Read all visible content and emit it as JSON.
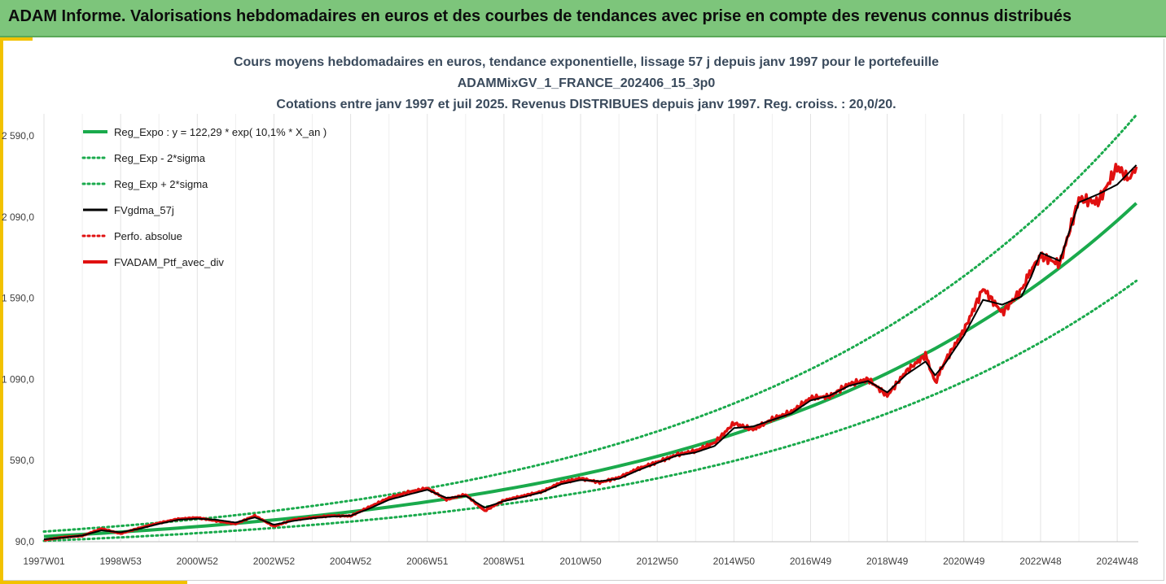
{
  "banner": {
    "title": "ADAM Informe. Valorisations hebdomadaires en euros et des courbes de tendances avec prise en compte des revenus connus distribués"
  },
  "colors": {
    "banner": "#7dc57b",
    "accent": "#f2c200",
    "trend": "#1aaa4c",
    "smooth": "#000000",
    "portfolio": "#e01010"
  },
  "chart_data": {
    "type": "line",
    "title_lines": [
      "Cours moyens hebdomadaires en euros, tendance exponentielle, lissage 57 j depuis janv 1997 pour le portefeuille",
      "ADAMMixGV_1_FRANCE_202406_15_3p0",
      "Cotations entre janv 1997 et juil 2025. Revenus DISTRIBUES depuis janv 1997. Reg. croiss. : 20,0/20."
    ],
    "x_tick_labels": [
      "1997W01",
      "1998W53",
      "2000W52",
      "2002W52",
      "2004W52",
      "2006W51",
      "2008W51",
      "2010W50",
      "2012W50",
      "2014W50",
      "2016W49",
      "2018W49",
      "2020W49",
      "2022W48",
      "2024W48"
    ],
    "x_tick_years": [
      1997.0,
      1999.0,
      2001.0,
      2003.0,
      2005.0,
      2007.0,
      2009.0,
      2011.0,
      2013.0,
      2015.0,
      2017.0,
      2019.0,
      2021.0,
      2023.0,
      2025.0
    ],
    "x_range": [
      1997.0,
      2025.55
    ],
    "y_tick_labels": [
      "90,0",
      "590,0",
      "1 090,0",
      "1 590,0",
      "2 090,0",
      "2 590,0"
    ],
    "y_tick_values": [
      90,
      590,
      1090,
      1590,
      2090,
      2590
    ],
    "ylim": [
      90,
      2590
    ],
    "grid": "vertical",
    "legend_position": "top-left",
    "legend": [
      {
        "label": "Reg_Expo : y = 122,29 * exp( 10,1% *  X_an )",
        "color": "#1aaa4c",
        "style": "solid"
      },
      {
        "label": "Reg_Exp - 2*sigma",
        "color": "#1aaa4c",
        "style": "dotted"
      },
      {
        "label": "Reg_Exp + 2*sigma",
        "color": "#1aaa4c",
        "style": "dotted"
      },
      {
        "label": "FVgdma_57j",
        "color": "#000000",
        "style": "solid"
      },
      {
        "label": "Perfo. absolue",
        "color": "#e01010",
        "style": "dotted"
      },
      {
        "label": "FVADAM_Ptf_avec_div",
        "color": "#e01010",
        "style": "solid"
      }
    ],
    "regression": {
      "a": 122.29,
      "b": 0.101
    },
    "series": [
      {
        "name": "Reg_Expo : y = 122,29 * exp( 10,1% *  X_an )",
        "x": [
          1997.0,
          1999.0,
          2001.0,
          2003.0,
          2005.0,
          2007.0,
          2009.0,
          2011.0,
          2013.0,
          2015.0,
          2017.0,
          2019.0,
          2021.0,
          2023.0,
          2025.5
        ],
        "values": [
          122,
          150,
          183,
          224,
          274,
          335,
          410,
          502,
          614,
          751,
          919,
          1124,
          1375,
          1680,
          2150
        ]
      },
      {
        "name": "Reg_Exp - 2*sigma",
        "x": [
          1997.0,
          1999.0,
          2001.0,
          2003.0,
          2005.0,
          2007.0,
          2009.0,
          2011.0,
          2013.0,
          2015.0,
          2017.0,
          2019.0,
          2021.0,
          2023.0,
          2025.5
        ],
        "values": [
          112,
          131,
          155,
          185,
          222,
          266,
          320,
          386,
          465,
          562,
          678,
          820,
          990,
          1200,
          1768
        ]
      },
      {
        "name": "Reg_Exp + 2*sigma",
        "x": [
          1997.0,
          1999.0,
          2001.0,
          2003.0,
          2005.0,
          2007.0,
          2009.0,
          2011.0,
          2013.0,
          2015.0,
          2017.0,
          2019.0,
          2021.0,
          2023.0,
          2025.5
        ],
        "values": [
          155,
          186,
          224,
          270,
          326,
          394,
          476,
          576,
          697,
          844,
          1022,
          1238,
          1500,
          1818,
          2690
        ]
      },
      {
        "name": "FVgdma_57j",
        "x": [
          1997.0,
          1997.5,
          1998.0,
          1998.5,
          1999.0,
          1999.5,
          2000.0,
          2000.5,
          2001.0,
          2001.5,
          2002.0,
          2002.5,
          2003.0,
          2003.5,
          2004.0,
          2004.5,
          2005.0,
          2005.5,
          2006.0,
          2006.5,
          2007.0,
          2007.5,
          2008.0,
          2008.5,
          2009.0,
          2009.5,
          2010.0,
          2010.5,
          2011.0,
          2011.5,
          2012.0,
          2012.5,
          2013.0,
          2013.5,
          2014.0,
          2014.5,
          2015.0,
          2015.5,
          2016.0,
          2016.5,
          2017.0,
          2017.5,
          2018.0,
          2018.5,
          2019.0,
          2019.5,
          2020.0,
          2020.25,
          2020.5,
          2021.0,
          2021.5,
          2022.0,
          2022.5,
          2022.75,
          2023.0,
          2023.5,
          2024.0,
          2024.5,
          2025.0,
          2025.5
        ],
        "values": [
          105,
          115,
          128,
          160,
          148,
          170,
          200,
          225,
          232,
          225,
          208,
          240,
          195,
          218,
          235,
          245,
          250,
          295,
          348,
          380,
          410,
          360,
          372,
          300,
          340,
          365,
          395,
          445,
          470,
          462,
          478,
          530,
          575,
          620,
          640,
          680,
          790,
          800,
          840,
          880,
          960,
          990,
          1050,
          1080,
          1010,
          1120,
          1200,
          1115,
          1185,
          1360,
          1580,
          1550,
          1600,
          1720,
          1870,
          1820,
          2180,
          2230,
          2290,
          2410
        ]
      },
      {
        "name": "FVADAM_Ptf_avec_div",
        "x": [
          1997.0,
          1997.5,
          1998.0,
          1998.5,
          1999.0,
          1999.5,
          2000.0,
          2000.5,
          2001.0,
          2001.5,
          2002.0,
          2002.5,
          2003.0,
          2003.5,
          2004.0,
          2004.5,
          2005.0,
          2005.5,
          2006.0,
          2006.5,
          2007.0,
          2007.5,
          2008.0,
          2008.5,
          2009.0,
          2009.5,
          2010.0,
          2010.5,
          2011.0,
          2011.5,
          2012.0,
          2012.5,
          2013.0,
          2013.5,
          2014.0,
          2014.5,
          2015.0,
          2015.5,
          2016.0,
          2016.5,
          2017.0,
          2017.5,
          2018.0,
          2018.5,
          2019.0,
          2019.5,
          2020.0,
          2020.25,
          2020.5,
          2021.0,
          2021.5,
          2022.0,
          2022.5,
          2022.75,
          2023.0,
          2023.5,
          2024.0,
          2024.5,
          2025.0,
          2025.3,
          2025.5
        ],
        "values": [
          100,
          118,
          126,
          170,
          140,
          175,
          205,
          230,
          238,
          218,
          200,
          250,
          185,
          225,
          238,
          250,
          248,
          305,
          360,
          395,
          420,
          350,
          380,
          280,
          345,
          372,
          400,
          455,
          480,
          455,
          485,
          540,
          580,
          625,
          650,
          700,
          820,
          780,
          845,
          890,
          975,
          985,
          1060,
          1090,
          990,
          1140,
          1240,
          1070,
          1200,
          1390,
          1650,
          1500,
          1640,
          1760,
          1850,
          1800,
          2200,
          2180,
          2400,
          2320,
          2400
        ]
      }
    ]
  }
}
